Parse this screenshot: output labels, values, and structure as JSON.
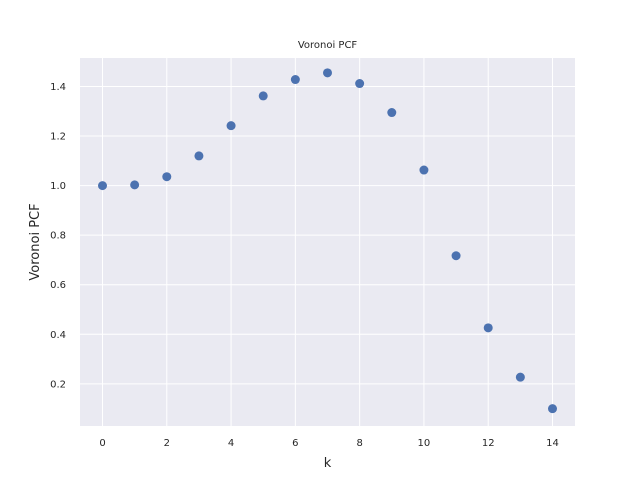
{
  "chart_data": {
    "type": "scatter",
    "title": "Voronoi PCF",
    "xlabel": "k",
    "ylabel": "Voronoi PCF",
    "x": [
      0,
      1,
      2,
      3,
      4,
      5,
      6,
      7,
      8,
      9,
      10,
      11,
      12,
      13,
      14
    ],
    "y": [
      1.0,
      1.003,
      1.036,
      1.12,
      1.242,
      1.362,
      1.428,
      1.455,
      1.412,
      1.295,
      1.063,
      0.717,
      0.426,
      0.227,
      0.1
    ],
    "xlim": [
      -0.7,
      14.7
    ],
    "ylim": [
      0.03,
      1.515
    ],
    "xticks": [
      0,
      2,
      4,
      6,
      8,
      10,
      12,
      14
    ],
    "xtick_labels": [
      "0",
      "2",
      "4",
      "6",
      "8",
      "10",
      "12",
      "14"
    ],
    "yticks": [
      0.2,
      0.4,
      0.6,
      0.8,
      1.0,
      1.2,
      1.4
    ],
    "ytick_labels": [
      "0.2",
      "0.4",
      "0.6",
      "0.8",
      "1.0",
      "1.2",
      "1.4"
    ],
    "grid": true,
    "colors": {
      "background": "#EAEAF2",
      "grid": "#FFFFFF",
      "marker": "#4C72B0"
    }
  }
}
